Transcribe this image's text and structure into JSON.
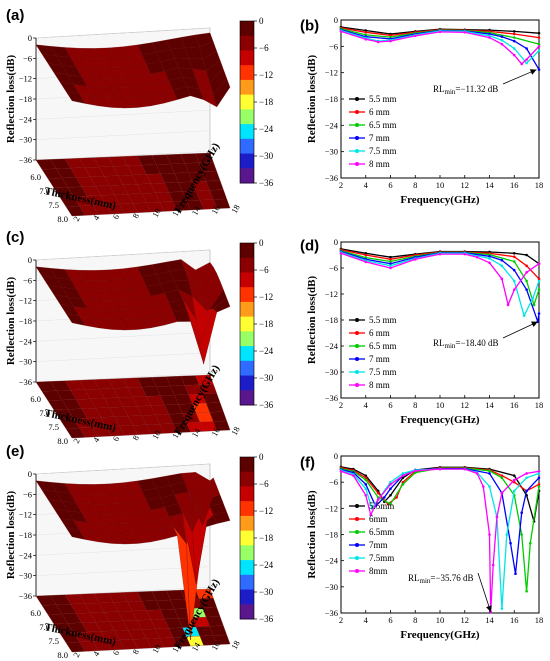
{
  "chart_data": [
    {
      "panel": "(a)",
      "type": "surface",
      "zlabel": "Reflection loss(dB)",
      "xlabel": "Thickness(mm)",
      "ylabel": "Frequency(GHz)",
      "z_ticks": [
        "0",
        "-6",
        "-12",
        "-18",
        "-24",
        "-30",
        "-36"
      ],
      "thickness_ticks": [
        "6.0",
        "7.0",
        "7.5",
        "8.0"
      ],
      "frequency_ticks": [
        "2",
        "4",
        "6",
        "8",
        "10",
        "12",
        "14",
        "16",
        "18"
      ],
      "colorbar": {
        "ticks": [
          "0",
          "-6",
          "-12",
          "-18",
          "-24",
          "-30",
          "-36"
        ],
        "colors": [
          "#5c0000",
          "#8b0000",
          "#c40000",
          "#ff3300",
          "#ff9a1a",
          "#ffff33",
          "#99ff66",
          "#00e5ff",
          "#2f6bff",
          "#1c1cc8",
          "#5a168c"
        ]
      },
      "min_rl": -11.32
    },
    {
      "panel": "(b)",
      "type": "line",
      "xlabel": "Frequency(GHz)",
      "ylabel": "Reflection loss(dB)",
      "xlim": [
        2,
        18
      ],
      "ylim": [
        -36,
        0
      ],
      "xticks": [
        "2",
        "4",
        "6",
        "8",
        "10",
        "12",
        "14",
        "16",
        "18"
      ],
      "yticks": [
        "0",
        "-6",
        "-12",
        "-18",
        "-24",
        "-30",
        "-36"
      ],
      "annotation": "RLₘᵢₙ=−11.32 dB",
      "annotation_point": {
        "x": 17.8,
        "y": -11.32
      },
      "series": [
        {
          "name": "5.5 mm",
          "color": "#000000",
          "x": [
            2,
            4,
            6,
            8,
            10,
            12,
            14,
            16,
            18
          ],
          "y": [
            -1.6,
            -2.4,
            -3.2,
            -2.6,
            -2.1,
            -2.2,
            -2.3,
            -2.6,
            -3.0
          ]
        },
        {
          "name": "6 mm",
          "color": "#ff0000",
          "x": [
            2,
            4,
            6,
            8,
            10,
            12,
            14,
            16,
            18
          ],
          "y": [
            -1.8,
            -2.8,
            -3.5,
            -2.8,
            -2.2,
            -2.3,
            -2.6,
            -3.2,
            -4.0
          ]
        },
        {
          "name": "6.5 mm",
          "color": "#00cc00",
          "x": [
            2,
            4,
            6,
            8,
            10,
            12,
            14,
            16,
            18
          ],
          "y": [
            -2.0,
            -3.4,
            -3.9,
            -3.0,
            -2.3,
            -2.4,
            -2.9,
            -4.0,
            -5.5
          ]
        },
        {
          "name": "7 mm",
          "color": "#0000ff",
          "x": [
            2,
            4,
            6,
            8,
            10,
            12,
            14,
            15,
            16,
            17,
            18
          ],
          "y": [
            -2.2,
            -3.8,
            -4.3,
            -3.2,
            -2.4,
            -2.5,
            -3.2,
            -3.8,
            -4.8,
            -6.5,
            -11.3
          ]
        },
        {
          "name": "7.5 mm",
          "color": "#00e5e5",
          "x": [
            2,
            4,
            5,
            6,
            8,
            10,
            12,
            14,
            15,
            16,
            17,
            18
          ],
          "y": [
            -2.4,
            -4.1,
            -4.8,
            -4.6,
            -3.4,
            -2.5,
            -2.6,
            -3.6,
            -4.6,
            -6.5,
            -9.8,
            -7.0
          ]
        },
        {
          "name": "8 mm",
          "color": "#ff00ff",
          "x": [
            2,
            4,
            5,
            6,
            8,
            10,
            12,
            14,
            15,
            16,
            16.6,
            17,
            18
          ],
          "y": [
            -2.6,
            -4.4,
            -5.0,
            -4.8,
            -3.6,
            -2.7,
            -2.8,
            -4.0,
            -5.5,
            -8.0,
            -10.0,
            -9.0,
            -6.0
          ]
        }
      ]
    },
    {
      "panel": "(c)",
      "type": "surface",
      "zlabel": "Reflection loss(dB)",
      "xlabel": "Thickness(mm)",
      "ylabel": "Frequency(GHz)",
      "z_ticks": [
        "0",
        "-6",
        "-12",
        "-18",
        "-24",
        "-30",
        "-36"
      ],
      "thickness_ticks": [
        "6.0",
        "7.0",
        "7.5",
        "8.0"
      ],
      "frequency_ticks": [
        "2",
        "4",
        "6",
        "8",
        "10",
        "12",
        "14",
        "16",
        "18"
      ],
      "colorbar": {
        "ticks": [
          "0",
          "-6",
          "-12",
          "-18",
          "-24",
          "-30",
          "-36"
        ],
        "colors": [
          "#5c0000",
          "#8b0000",
          "#c40000",
          "#ff3300",
          "#ff9a1a",
          "#ffff33",
          "#99ff66",
          "#00e5ff",
          "#2f6bff",
          "#1c1cc8",
          "#5a168c"
        ]
      },
      "min_rl": -18.4
    },
    {
      "panel": "(d)",
      "type": "line",
      "xlabel": "Frequency(GHz)",
      "ylabel": "Reflection loss(dB)",
      "xlim": [
        2,
        18
      ],
      "ylim": [
        -36,
        0
      ],
      "xticks": [
        "2",
        "4",
        "6",
        "8",
        "10",
        "12",
        "14",
        "16",
        "18"
      ],
      "yticks": [
        "0",
        "-6",
        "-12",
        "-18",
        "-24",
        "-30",
        "-36"
      ],
      "annotation": "RLₘᵢₙ=−18.40 dB",
      "annotation_point": {
        "x": 17.9,
        "y": -18.4
      },
      "series": [
        {
          "name": "5.5 mm",
          "color": "#000000",
          "x": [
            2,
            4,
            6,
            8,
            10,
            12,
            14,
            16,
            17,
            18
          ],
          "y": [
            -1.6,
            -2.6,
            -3.5,
            -2.8,
            -2.2,
            -2.2,
            -2.3,
            -2.6,
            -3.0,
            -5.0
          ]
        },
        {
          "name": "6 mm",
          "color": "#ff0000",
          "x": [
            2,
            4,
            6,
            8,
            10,
            12,
            14,
            16,
            17,
            18
          ],
          "y": [
            -1.8,
            -3.0,
            -4.0,
            -3.0,
            -2.3,
            -2.3,
            -2.6,
            -3.4,
            -5.5,
            -8.5
          ]
        },
        {
          "name": "6.5 mm",
          "color": "#00cc00",
          "x": [
            2,
            4,
            6,
            8,
            10,
            12,
            14,
            16,
            17,
            17.6,
            18
          ],
          "y": [
            -2.0,
            -3.6,
            -4.5,
            -3.3,
            -2.4,
            -2.4,
            -2.9,
            -4.5,
            -9.0,
            -14.5,
            -11.0
          ]
        },
        {
          "name": "7 mm",
          "color": "#0000ff",
          "x": [
            2,
            4,
            6,
            8,
            10,
            12,
            14,
            15,
            16,
            17,
            17.9,
            18
          ],
          "y": [
            -2.2,
            -4.0,
            -5.0,
            -3.5,
            -2.5,
            -2.5,
            -3.3,
            -4.2,
            -6.5,
            -11.0,
            -18.4,
            -16.5
          ]
        },
        {
          "name": "7.5 mm",
          "color": "#00e5e5",
          "x": [
            2,
            4,
            6,
            8,
            10,
            12,
            14,
            15,
            16,
            16.8,
            17.5,
            18
          ],
          "y": [
            -2.4,
            -4.3,
            -5.5,
            -3.8,
            -2.6,
            -2.6,
            -3.8,
            -5.5,
            -9.0,
            -17.0,
            -13.0,
            -9.0
          ]
        },
        {
          "name": "8 mm",
          "color": "#ff00ff",
          "x": [
            2,
            4,
            6,
            8,
            10,
            12,
            13,
            14,
            15,
            15.5,
            16,
            17,
            18
          ],
          "y": [
            -2.6,
            -4.6,
            -6.0,
            -4.0,
            -2.8,
            -2.8,
            -3.5,
            -4.8,
            -8.5,
            -14.5,
            -11.0,
            -7.0,
            -5.0
          ]
        }
      ]
    },
    {
      "panel": "(e)",
      "type": "surface",
      "zlabel": "Reflection loss(dB)",
      "xlabel": "Thickness(mm)",
      "ylabel": "Frequency(GHz)",
      "z_ticks": [
        "0",
        "-6",
        "-12",
        "-18",
        "-24",
        "-30",
        "-36"
      ],
      "thickness_ticks": [
        "6.0",
        "7.0",
        "7.5",
        "8.0"
      ],
      "frequency_ticks": [
        "2",
        "4",
        "6",
        "8",
        "10",
        "12",
        "14",
        "16",
        "18"
      ],
      "colorbar": {
        "ticks": [
          "0",
          "-6",
          "-12",
          "-18",
          "-24",
          "-30",
          "-36"
        ],
        "colors": [
          "#5c0000",
          "#8b0000",
          "#c40000",
          "#ff3300",
          "#ff9a1a",
          "#ffff33",
          "#99ff66",
          "#00e5ff",
          "#2f6bff",
          "#1c1cc8",
          "#5a168c"
        ]
      },
      "min_rl": -35.76
    },
    {
      "panel": "(f)",
      "type": "line",
      "xlabel": "Frequency(GHz)",
      "ylabel": "Reflection loss(dB)",
      "xlim": [
        2,
        18
      ],
      "ylim": [
        -36,
        0
      ],
      "xticks": [
        "2",
        "4",
        "6",
        "8",
        "10",
        "12",
        "14",
        "16",
        "18"
      ],
      "yticks": [
        "0",
        "-6",
        "-12",
        "-18",
        "-24",
        "-30",
        "-36"
      ],
      "annotation": "RLₘᵢₙ=−35.76 dB",
      "annotation_point": {
        "x": 14.1,
        "y": -35.76
      },
      "series": [
        {
          "name": "5.5mm",
          "color": "#000000",
          "x": [
            2,
            3,
            4,
            5,
            5.5,
            6,
            7,
            8,
            10,
            12,
            14,
            16,
            17,
            17.6,
            18
          ],
          "y": [
            -2.5,
            -3.0,
            -4.5,
            -8.0,
            -10.5,
            -9.0,
            -5.0,
            -3.2,
            -2.6,
            -2.6,
            -3.0,
            -4.5,
            -9.0,
            -15.0,
            -8.0
          ]
        },
        {
          "name": "6mm",
          "color": "#ff0000",
          "x": [
            2,
            3,
            4,
            5,
            5.8,
            6.5,
            7,
            8,
            10,
            12,
            14,
            15,
            16,
            17,
            18
          ],
          "y": [
            -2.7,
            -3.3,
            -5.0,
            -8.5,
            -11.0,
            -9.5,
            -6.0,
            -3.5,
            -2.7,
            -2.7,
            -3.2,
            -4.5,
            -6.0,
            -8.0,
            -6.5
          ]
        },
        {
          "name": "6.5mm",
          "color": "#00cc00",
          "x": [
            2,
            3,
            4,
            5,
            6,
            7,
            8,
            10,
            12,
            14,
            15,
            16,
            16.6,
            17,
            17.3,
            18
          ],
          "y": [
            -2.9,
            -3.5,
            -5.5,
            -9.5,
            -11.0,
            -6.5,
            -3.8,
            -2.8,
            -2.8,
            -3.4,
            -5.0,
            -9.0,
            -18.0,
            -31.0,
            -20.0,
            -7.0
          ]
        },
        {
          "name": "7mm",
          "color": "#0000ff",
          "x": [
            2,
            3,
            4,
            4.8,
            5.5,
            6,
            7,
            8,
            10,
            12,
            14,
            15,
            15.7,
            16.1,
            16.6,
            17,
            18
          ],
          "y": [
            -3.1,
            -3.8,
            -6.5,
            -11.5,
            -9.5,
            -7.5,
            -4.5,
            -3.2,
            -2.9,
            -2.9,
            -4.0,
            -8.5,
            -20.0,
            -27.0,
            -13.0,
            -8.0,
            -5.0
          ]
        },
        {
          "name": "7.5mm",
          "color": "#00e5e5",
          "x": [
            2,
            3,
            4,
            4.5,
            5,
            6,
            7,
            8,
            10,
            12,
            13,
            14,
            14.6,
            15,
            15.4,
            16,
            17,
            18
          ],
          "y": [
            -3.3,
            -4.2,
            -7.5,
            -12.0,
            -10.0,
            -6.0,
            -4.0,
            -3.2,
            -3.0,
            -3.0,
            -3.8,
            -7.0,
            -14.0,
            -35.0,
            -18.0,
            -8.0,
            -5.0,
            -4.0
          ]
        },
        {
          "name": "8mm",
          "color": "#ff00ff",
          "x": [
            2,
            3,
            4,
            4.4,
            5,
            6,
            7,
            8,
            10,
            12,
            13,
            13.5,
            14,
            14.1,
            14.3,
            14.6,
            15,
            16,
            17,
            18
          ],
          "y": [
            -3.5,
            -4.5,
            -9.0,
            -13.5,
            -10.0,
            -6.5,
            -4.5,
            -3.4,
            -3.0,
            -3.0,
            -4.0,
            -7.0,
            -18.0,
            -35.76,
            -25.0,
            -14.0,
            -8.5,
            -5.5,
            -4.0,
            -3.5
          ]
        }
      ]
    }
  ]
}
